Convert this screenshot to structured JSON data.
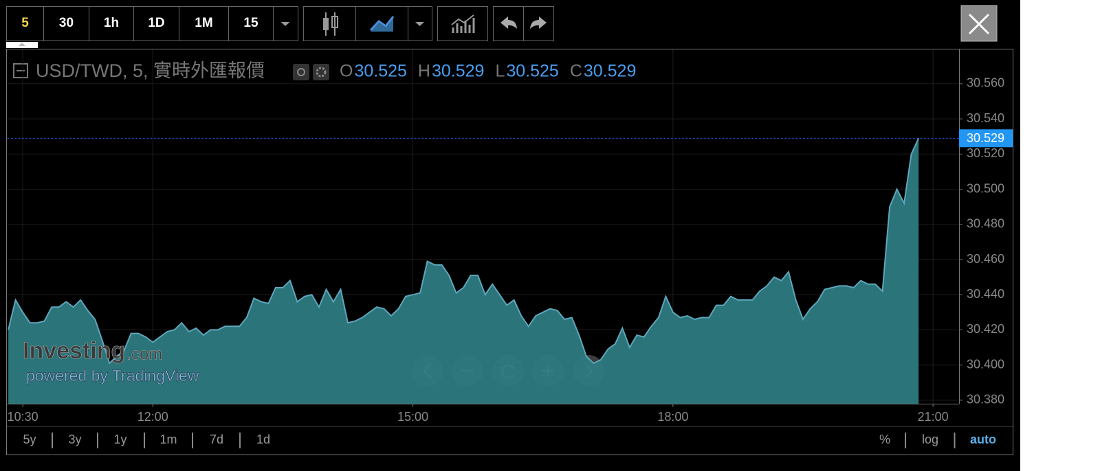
{
  "toolbar": {
    "intervals": [
      "5",
      "30",
      "1h",
      "1D",
      "1M",
      "15"
    ]
  },
  "chart_data": {
    "type": "area",
    "title": "USD/TWD, 5, 實時外匯報價",
    "ohlc": [
      {
        "label": "O",
        "value": 30.525
      },
      {
        "label": "H",
        "value": 30.529
      },
      {
        "label": "L",
        "value": 30.525
      },
      {
        "label": "C",
        "value": 30.529
      }
    ],
    "x": [
      "10:20",
      "10:25",
      "10:30",
      "10:35",
      "10:40",
      "10:45",
      "10:50",
      "10:55",
      "11:00",
      "11:05",
      "11:10",
      "11:15",
      "11:20",
      "11:25",
      "11:30",
      "11:35",
      "11:40",
      "11:45",
      "11:50",
      "11:55",
      "12:00",
      "12:05",
      "12:10",
      "12:15",
      "12:20",
      "12:25",
      "12:30",
      "12:35",
      "12:40",
      "12:45",
      "12:50",
      "12:55",
      "13:00",
      "13:05",
      "13:10",
      "13:15",
      "13:20",
      "13:25",
      "13:30",
      "13:35",
      "13:40",
      "13:45",
      "13:50",
      "13:55",
      "14:00",
      "14:05",
      "14:10",
      "14:15",
      "14:20",
      "14:25",
      "14:30",
      "14:35",
      "14:40",
      "14:45",
      "14:50",
      "14:55",
      "15:00",
      "15:05",
      "15:10",
      "15:15",
      "15:20",
      "15:25",
      "15:30",
      "15:35",
      "15:40",
      "15:45",
      "15:50",
      "15:55",
      "16:00",
      "16:05",
      "16:10",
      "16:15",
      "16:20",
      "16:25",
      "16:30",
      "16:35",
      "16:40",
      "16:45",
      "16:50",
      "16:55",
      "17:00",
      "17:05",
      "17:10",
      "17:15",
      "17:20",
      "17:25",
      "17:30",
      "17:35",
      "17:40",
      "17:45",
      "17:50",
      "17:55",
      "18:00",
      "18:05",
      "18:10",
      "18:15",
      "18:20",
      "18:25",
      "18:30",
      "18:35",
      "18:40",
      "18:45",
      "18:50",
      "18:55",
      "19:00",
      "19:05",
      "19:10",
      "19:15",
      "19:20",
      "19:25",
      "19:30",
      "19:35",
      "19:40",
      "19:45",
      "19:50",
      "19:55",
      "20:00",
      "20:05",
      "20:10",
      "20:15",
      "20:20",
      "20:25",
      "20:30",
      "20:35",
      "20:40",
      "20:45",
      "20:50"
    ],
    "values": [
      30.42,
      30.437,
      30.43,
      30.424,
      30.424,
      30.425,
      30.433,
      30.433,
      30.436,
      30.433,
      30.437,
      30.431,
      30.426,
      30.414,
      30.401,
      30.405,
      30.408,
      30.418,
      30.418,
      30.416,
      30.413,
      30.416,
      30.419,
      30.42,
      30.424,
      30.419,
      30.421,
      30.417,
      30.42,
      30.42,
      30.422,
      30.422,
      30.422,
      30.427,
      30.438,
      30.436,
      30.435,
      30.444,
      30.444,
      30.448,
      30.436,
      30.439,
      30.44,
      30.433,
      30.443,
      30.436,
      30.443,
      30.424,
      30.425,
      30.427,
      30.43,
      30.433,
      30.432,
      30.428,
      30.432,
      30.439,
      30.44,
      30.441,
      30.459,
      30.457,
      30.457,
      30.451,
      30.441,
      30.444,
      30.451,
      30.451,
      30.44,
      30.446,
      30.44,
      30.434,
      30.437,
      30.428,
      30.422,
      30.428,
      30.43,
      30.432,
      30.431,
      30.426,
      30.427,
      30.417,
      30.405,
      30.401,
      30.403,
      30.409,
      30.412,
      30.421,
      30.41,
      30.417,
      30.416,
      30.422,
      30.427,
      30.439,
      30.43,
      30.427,
      30.428,
      30.426,
      30.427,
      30.427,
      30.434,
      30.434,
      30.439,
      30.437,
      30.437,
      30.437,
      30.442,
      30.445,
      30.45,
      30.448,
      30.453,
      30.437,
      30.426,
      30.432,
      30.436,
      30.443,
      30.444,
      30.445,
      30.445,
      30.444,
      30.448,
      30.446,
      30.446,
      30.442,
      30.49,
      30.5,
      30.492,
      30.52,
      30.529
    ],
    "color": "#2d7a7f",
    "line_color": "#5ea6bd",
    "xlim": [
      "10:19",
      "21:18"
    ],
    "xticks": [
      "10:30",
      "12:00",
      "15:00",
      "18:00",
      "21:00"
    ],
    "ylim": [
      30.378,
      30.5795
    ],
    "yticks": [
      {
        "value": 30.38,
        "label": "30.380"
      },
      {
        "value": 30.4,
        "label": "30.400"
      },
      {
        "value": 30.42,
        "label": "30.420"
      },
      {
        "value": 30.44,
        "label": "30.440"
      },
      {
        "value": 30.46,
        "label": "30.460"
      },
      {
        "value": 30.48,
        "label": "30.480"
      },
      {
        "value": 30.5,
        "label": "30.500"
      },
      {
        "value": 30.52,
        "label": "30.520"
      },
      {
        "value": 30.54,
        "label": "30.540"
      },
      {
        "value": 30.56,
        "label": "30.560"
      }
    ],
    "grid": true
  },
  "watermark": {
    "brand": "Investing",
    "domain": ".com",
    "powered_by": "powered by TradingView"
  },
  "range_buttons": [
    "5y",
    "3y",
    "1y",
    "1m",
    "7d",
    "1d"
  ],
  "scale_buttons": [
    "%",
    "log",
    "auto"
  ]
}
